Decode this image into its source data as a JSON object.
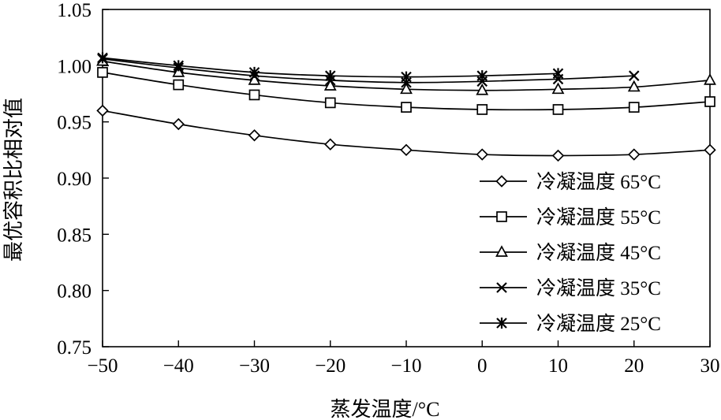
{
  "chart_data": {
    "type": "line",
    "title": "",
    "xlabel": "蒸发温度/°C",
    "ylabel": "最优容积比相对值",
    "xlim": [
      -50,
      30
    ],
    "ylim": [
      0.75,
      1.05
    ],
    "x_ticks": [
      -50,
      -40,
      -30,
      -20,
      -10,
      0,
      10,
      20,
      30
    ],
    "x_tick_labels": [
      "−50",
      "−40",
      "−30",
      "−20",
      "−10",
      "0",
      "10",
      "20",
      "30"
    ],
    "y_ticks": [
      0.75,
      0.8,
      0.85,
      0.9,
      0.95,
      1.0,
      1.05
    ],
    "y_tick_labels": [
      "0.75",
      "0.80",
      "0.85",
      "0.90",
      "0.95",
      "1.00",
      "1.05"
    ],
    "grid": false,
    "legend_position": "bottom-right",
    "series": [
      {
        "name": "冷凝温度 65°C",
        "marker": "diamond",
        "x": [
          -50,
          -40,
          -30,
          -20,
          -10,
          0,
          10,
          20,
          30
        ],
        "y": [
          0.96,
          0.948,
          0.938,
          0.93,
          0.925,
          0.921,
          0.92,
          0.921,
          0.925
        ]
      },
      {
        "name": "冷凝温度 55°C",
        "marker": "square",
        "x": [
          -50,
          -40,
          -30,
          -20,
          -10,
          0,
          10,
          20,
          30
        ],
        "y": [
          0.994,
          0.983,
          0.974,
          0.967,
          0.963,
          0.961,
          0.961,
          0.963,
          0.968
        ]
      },
      {
        "name": "冷凝温度 45°C",
        "marker": "triangle",
        "x": [
          -50,
          -40,
          -30,
          -20,
          -10,
          0,
          10,
          20,
          30
        ],
        "y": [
          1.004,
          0.994,
          0.987,
          0.982,
          0.979,
          0.978,
          0.979,
          0.981,
          0.987
        ]
      },
      {
        "name": "冷凝温度 35°C",
        "marker": "x",
        "x": [
          -50,
          -40,
          -30,
          -20,
          -10,
          0,
          10,
          20
        ],
        "y": [
          1.006,
          0.998,
          0.991,
          0.987,
          0.985,
          0.986,
          0.988,
          0.991
        ]
      },
      {
        "name": "冷凝温度 25°C",
        "marker": "asterisk",
        "x": [
          -50,
          -40,
          -30,
          -20,
          -10,
          0,
          10
        ],
        "y": [
          1.007,
          1.0,
          0.994,
          0.991,
          0.99,
          0.991,
          0.993
        ]
      }
    ]
  }
}
